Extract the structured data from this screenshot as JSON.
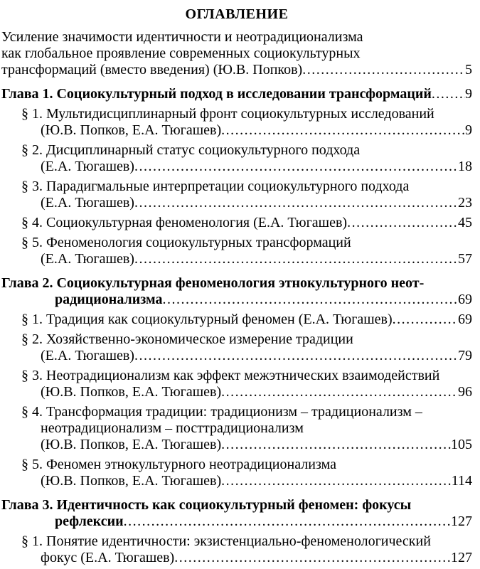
{
  "toc": {
    "title": "ОГЛАВЛЕНИЕ",
    "entries": [
      {
        "id": "introduction",
        "type": "intro",
        "lines": [
          "Усиление значимости идентичности и неотрадиционализма",
          "как глобальное проявление современных социокультурных"
        ],
        "last_line": "трансформаций (вместо введения) (Ю.В. Попков)",
        "page": "5"
      },
      {
        "id": "chapter-1",
        "type": "chapter",
        "lines": [],
        "last_line": "Глава 1. Социокультурный подход в исследовании трансформаций",
        "page": "9"
      },
      {
        "id": "ch1-par1",
        "type": "section",
        "lines": [
          "§ 1. Мультидисциплинарный фронт социокультурных исследований"
        ],
        "last_line": "(Ю.В. Попков, Е.А. Тюгашев)",
        "page": "9"
      },
      {
        "id": "ch1-par2",
        "type": "section",
        "lines": [
          "§ 2. Дисциплинарный статус социокультурного подхода"
        ],
        "last_line": "(Е.А. Тюгашев)",
        "page": "18"
      },
      {
        "id": "ch1-par3",
        "type": "section",
        "lines": [
          "§ 3. Парадигмальные интерпретации социокультурного подхода"
        ],
        "last_line": "(Е.А. Тюгашев)",
        "page": "23"
      },
      {
        "id": "ch1-par4",
        "type": "section",
        "lines": [],
        "last_line": "§ 4. Социокультурная феноменология (Е.А. Тюгашев)",
        "page": "45"
      },
      {
        "id": "ch1-par5",
        "type": "section",
        "lines": [
          "§ 5. Феноменология социокультурных трансформаций"
        ],
        "last_line": "(Е.А. Тюгашев)",
        "page": "57"
      },
      {
        "id": "chapter-2",
        "type": "chapter",
        "lines": [
          "Глава 2. Социокультурная феноменология этнокультурного неот-"
        ],
        "last_line": "радиционализма",
        "page": "69"
      },
      {
        "id": "ch2-par1",
        "type": "section",
        "lines": [],
        "last_line": "§ 1. Традиция как социокультурный феномен (Е.А. Тюгашев)",
        "page": "69"
      },
      {
        "id": "ch2-par2",
        "type": "section",
        "lines": [
          "§ 2. Хозяйственно-экономическое измерение традиции"
        ],
        "last_line": "(Е.А. Тюгашев)",
        "page": "79"
      },
      {
        "id": "ch2-par3",
        "type": "section",
        "lines": [
          "§ 3. Неотрадиционализм как эффект межэтнических взаимодействий"
        ],
        "last_line": "(Ю.В. Попков, Е.А. Тюгашев)",
        "page": "96"
      },
      {
        "id": "ch2-par4",
        "type": "section",
        "lines": [
          "§ 4. Трансформация традиции: традиционизм – традиционализм –",
          "неотрадиционализм – посттрадиционализм"
        ],
        "last_line": "(Ю.В. Попков, Е.А. Тюгашев)",
        "page": "105"
      },
      {
        "id": "ch2-par5",
        "type": "section",
        "lines": [
          "§ 5. Феномен этнокультурного неотрадиционализма"
        ],
        "last_line": "(Ю.В. Попков, Е.А. Тюгашев)",
        "page": "114"
      },
      {
        "id": "chapter-3",
        "type": "chapter",
        "lines": [
          "Глава 3. Идентичность как социокультурный феномен: фокусы"
        ],
        "last_line": "рефлексии",
        "page": "127"
      },
      {
        "id": "ch3-par1",
        "type": "section",
        "lines": [
          "§ 1. Понятие идентичности: экзистенциально-феноменологический"
        ],
        "last_line": "фокус (Е.А. Тюгашев)",
        "page": "127"
      }
    ]
  }
}
